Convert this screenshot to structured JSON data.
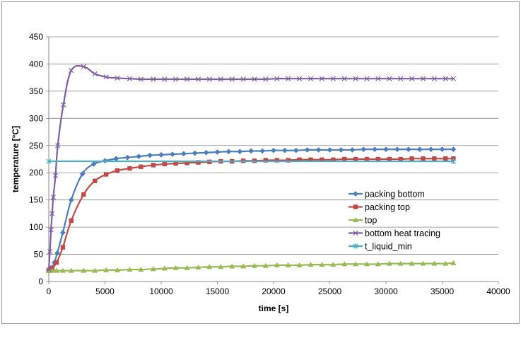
{
  "chart_data": {
    "type": "line",
    "xlabel": "time [s]",
    "ylabel": "temperature [°C]",
    "xlim": [
      0,
      40000
    ],
    "ylim": [
      0,
      450
    ],
    "xticks": [
      0,
      5000,
      10000,
      15000,
      20000,
      25000,
      30000,
      35000,
      40000
    ],
    "yticks": [
      0,
      50,
      100,
      150,
      200,
      250,
      300,
      350,
      400,
      450
    ],
    "grid": "horizontal",
    "legend_position": "right",
    "series": [
      {
        "name": "packing bottom",
        "color": "#4a7ebb",
        "marker": "diamond",
        "x": [
          0,
          250,
          500,
          750,
          1250,
          2000,
          3000,
          4000,
          5000,
          6000,
          7000,
          8000,
          9000,
          10000,
          11000,
          12000,
          13000,
          14000,
          15000,
          16000,
          17000,
          18000,
          19000,
          20000,
          21000,
          22000,
          23000,
          24000,
          25000,
          26000,
          27000,
          28000,
          29000,
          30000,
          31000,
          32000,
          33000,
          34000,
          35000,
          36000
        ],
        "y": [
          20,
          25,
          35,
          52,
          90,
          150,
          198,
          216,
          222,
          226,
          228,
          230,
          232,
          233,
          234,
          235,
          236,
          237,
          238,
          239,
          239,
          240,
          240,
          241,
          241,
          241,
          242,
          242,
          242,
          242,
          242,
          243,
          243,
          243,
          243,
          243,
          243,
          243,
          243,
          243
        ]
      },
      {
        "name": "packing top",
        "color": "#be4b48",
        "marker": "square",
        "x": [
          0,
          300,
          700,
          1250,
          2000,
          3100,
          4100,
          5100,
          6100,
          7200,
          8200,
          9300,
          10300,
          11300,
          12300,
          13300,
          14300,
          15300,
          16300,
          17300,
          18300,
          19300,
          20300,
          21300,
          22300,
          23300,
          24300,
          25300,
          26300,
          27300,
          28300,
          29300,
          30300,
          31300,
          32300,
          33300,
          34300,
          35300,
          36000
        ],
        "y": [
          20,
          25,
          35,
          63,
          112,
          160,
          185,
          197,
          204,
          208,
          211,
          214,
          216,
          217,
          218,
          219,
          220,
          221,
          221,
          222,
          222,
          223,
          223,
          223,
          224,
          224,
          224,
          224,
          225,
          225,
          225,
          225,
          225,
          225,
          226,
          226,
          226,
          226,
          226
        ]
      },
      {
        "name": "top",
        "color": "#98b954",
        "marker": "triangle",
        "x": [
          0,
          300,
          700,
          1250,
          2000,
          3100,
          4100,
          5100,
          6100,
          7200,
          8200,
          9300,
          10300,
          11300,
          12300,
          13300,
          14300,
          15300,
          16300,
          17300,
          18300,
          19300,
          20300,
          21300,
          22300,
          23300,
          24300,
          25300,
          26300,
          27300,
          28300,
          29300,
          30300,
          31300,
          32300,
          33300,
          34300,
          35300,
          36000
        ],
        "y": [
          20,
          20,
          20,
          20,
          20,
          20,
          20,
          21,
          21,
          22,
          22,
          23,
          24,
          25,
          25,
          26,
          27,
          27,
          28,
          28,
          29,
          29,
          30,
          30,
          30,
          31,
          31,
          31,
          32,
          32,
          32,
          32,
          33,
          33,
          33,
          33,
          33,
          33,
          34
        ]
      },
      {
        "name": "bottom heat tracing",
        "color": "#7d5fa0",
        "marker": "x",
        "x": [
          0,
          100,
          200,
          300,
          400,
          600,
          800,
          1300,
          2000,
          3100,
          4100,
          5100,
          6100,
          7200,
          8200,
          9300,
          10300,
          11300,
          12300,
          13300,
          14300,
          15300,
          16300,
          17300,
          18300,
          19300,
          20300,
          21300,
          22300,
          23300,
          24300,
          25300,
          26300,
          27300,
          28300,
          29300,
          30300,
          31300,
          32300,
          33300,
          34300,
          35300,
          36000
        ],
        "y": [
          22,
          55,
          95,
          125,
          155,
          195,
          250,
          325,
          388,
          395,
          382,
          376,
          374,
          373,
          372,
          372,
          372,
          372,
          372,
          372,
          372,
          372,
          372,
          372,
          372,
          372,
          373,
          373,
          373,
          373,
          373,
          373,
          373,
          373,
          373,
          373,
          373,
          373,
          373,
          373,
          373,
          373,
          373
        ]
      },
      {
        "name": "t_liquid_min",
        "color": "#4bacc6",
        "marker": "star",
        "x": [
          0,
          36000
        ],
        "y": [
          221,
          221
        ]
      }
    ]
  }
}
